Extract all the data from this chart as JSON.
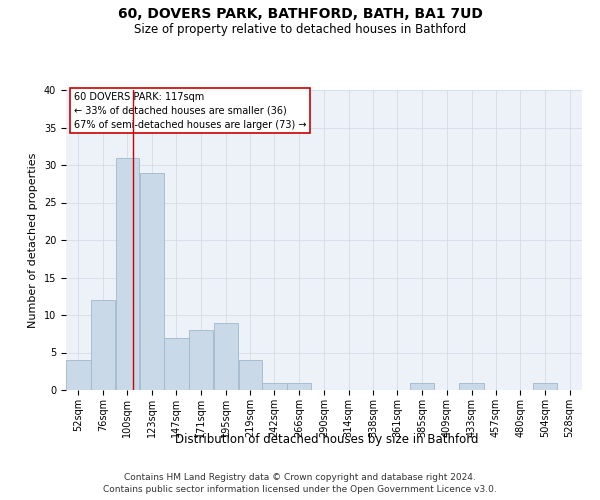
{
  "title": "60, DOVERS PARK, BATHFORD, BATH, BA1 7UD",
  "subtitle": "Size of property relative to detached houses in Bathford",
  "xlabel": "Distribution of detached houses by size in Bathford",
  "ylabel": "Number of detached properties",
  "bar_color": "#c9d9e8",
  "bar_edge_color": "#a0b8cc",
  "grid_color": "#d0d8e4",
  "background_color": "#edf2f9",
  "annotation_box_text": "60 DOVERS PARK: 117sqm\n← 33% of detached houses are smaller (36)\n67% of semi-detached houses are larger (73) →",
  "annotation_box_color": "#cc0000",
  "vline_x": 117,
  "vline_color": "#cc0000",
  "categories": [
    "52sqm",
    "76sqm",
    "100sqm",
    "123sqm",
    "147sqm",
    "171sqm",
    "195sqm",
    "219sqm",
    "242sqm",
    "266sqm",
    "290sqm",
    "314sqm",
    "338sqm",
    "361sqm",
    "385sqm",
    "409sqm",
    "433sqm",
    "457sqm",
    "480sqm",
    "504sqm",
    "528sqm"
  ],
  "bin_edges": [
    52,
    76,
    100,
    123,
    147,
    171,
    195,
    219,
    242,
    266,
    290,
    314,
    338,
    361,
    385,
    409,
    433,
    457,
    480,
    504,
    528,
    552
  ],
  "values": [
    4,
    12,
    31,
    29,
    7,
    8,
    9,
    4,
    1,
    1,
    0,
    0,
    0,
    0,
    1,
    0,
    1,
    0,
    0,
    1,
    0
  ],
  "ylim": [
    0,
    40
  ],
  "yticks": [
    0,
    5,
    10,
    15,
    20,
    25,
    30,
    35,
    40
  ],
  "footer": "Contains HM Land Registry data © Crown copyright and database right 2024.\nContains public sector information licensed under the Open Government Licence v3.0.",
  "title_fontsize": 10,
  "subtitle_fontsize": 8.5,
  "xlabel_fontsize": 8.5,
  "ylabel_fontsize": 8,
  "tick_fontsize": 7,
  "ann_fontsize": 7,
  "footer_fontsize": 6.5
}
